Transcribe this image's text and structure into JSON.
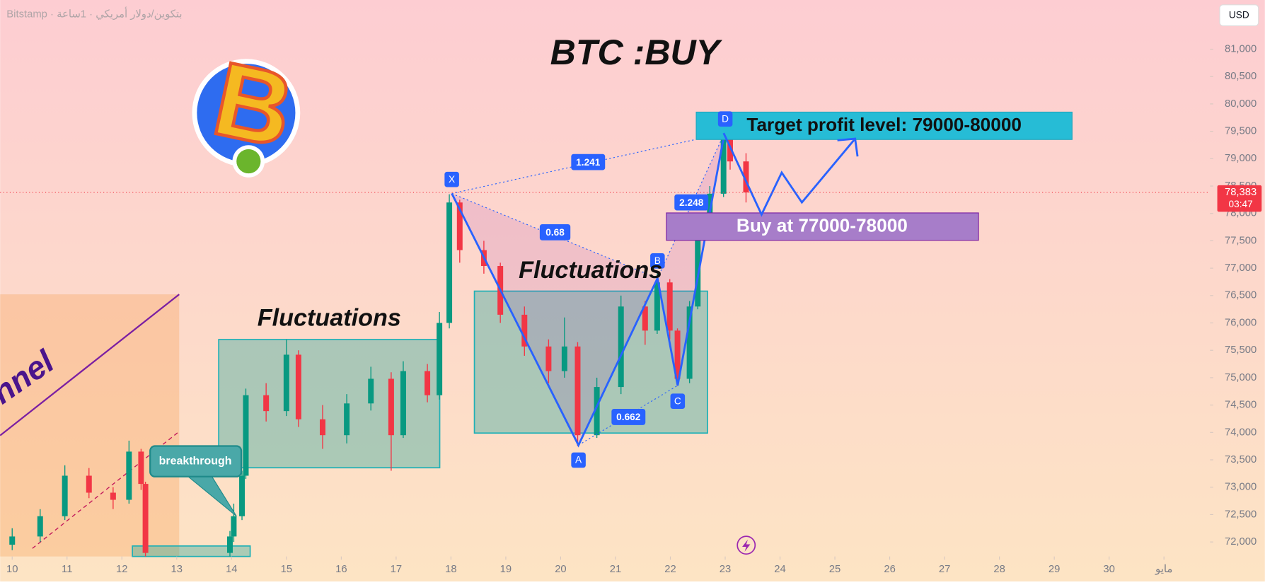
{
  "chart_data": {
    "type": "candlestick",
    "header": "Bitstamp · بتكوين/دولار أمريكي · 1ساعة",
    "currency": "USD",
    "title": "BTC :BUY",
    "target_label": "Target profit level: 79000-80000",
    "buy_label": "Buy at 77000-78000",
    "fluctuations_labels": [
      "Fluctuations",
      "Fluctuations"
    ],
    "breakthrough_label": "breakthrough",
    "channel_label": "nnel",
    "pattern_points": [
      "X",
      "A",
      "B",
      "C",
      "D"
    ],
    "pattern_ratios": [
      "1.241",
      "0.68",
      "2.248",
      "0.662"
    ],
    "up_color": "#089981",
    "down_color": "#f23645",
    "x": [
      10.0,
      10.51,
      10.96,
      11.4,
      11.84,
      12.13,
      12.35,
      12.43,
      13.97,
      14.04,
      14.19,
      14.26,
      14.63,
      15.0,
      15.22,
      15.66,
      16.1,
      16.54,
      16.91,
      17.13,
      17.57,
      17.79,
      17.97,
      18.16,
      18.6,
      18.9,
      19.34,
      19.78,
      20.07,
      20.31,
      20.66,
      21.1,
      21.54,
      21.76,
      21.99,
      22.13,
      22.35,
      22.5,
      22.72,
      22.97,
      23.09,
      23.38
    ],
    "open": [
      71950,
      72100,
      72470,
      73210,
      72900,
      72770,
      73650,
      73060,
      71800,
      72100,
      72470,
      73210,
      74680,
      74390,
      75420,
      74240,
      73950,
      74530,
      74980,
      73950,
      75120,
      74680,
      76000,
      78200,
      77330,
      77040,
      76150,
      75570,
      75120,
      75570,
      73950,
      74830,
      76300,
      75860,
      76740,
      75860,
      74980,
      76300,
      77630,
      78360,
      79390,
      78950
    ],
    "high": [
      72250,
      72600,
      73400,
      73350,
      73000,
      73850,
      73700,
      73100,
      72200,
      72700,
      73300,
      74800,
      74900,
      75700,
      75500,
      74500,
      74700,
      75200,
      75100,
      75300,
      75250,
      76200,
      78350,
      78250,
      77500,
      77100,
      76300,
      75700,
      76100,
      75650,
      75000,
      76500,
      76400,
      76900,
      76800,
      75900,
      76400,
      77800,
      78500,
      79470,
      79400,
      79100
    ],
    "low": [
      71850,
      72000,
      72400,
      72800,
      72600,
      72700,
      72950,
      71700,
      71700,
      72000,
      72400,
      73150,
      74200,
      74300,
      74100,
      73700,
      73800,
      74400,
      73300,
      73900,
      74550,
      74600,
      75900,
      77100,
      76900,
      76000,
      75400,
      74900,
      75000,
      73750,
      73900,
      74700,
      75600,
      75800,
      75700,
      74850,
      74900,
      76250,
      77550,
      78300,
      78800,
      78200
    ],
    "close": [
      72100,
      72470,
      73210,
      72900,
      72770,
      73650,
      73060,
      71800,
      72100,
      72470,
      73210,
      74680,
      74390,
      75420,
      74240,
      73950,
      74530,
      74980,
      73950,
      75120,
      74680,
      76000,
      78200,
      77330,
      77040,
      76150,
      75570,
      75120,
      75570,
      73950,
      74830,
      76300,
      75860,
      76740,
      75860,
      74980,
      76300,
      77630,
      78360,
      79390,
      78950,
      78383
    ],
    "current_price": {
      "value": 78383,
      "label": "78,383"
    },
    "countdown": "03:47",
    "xlim": [
      9.78,
      31.84
    ],
    "xticks": [
      10,
      11,
      12,
      13,
      14,
      15,
      16,
      17,
      18,
      19,
      20,
      21,
      22,
      23,
      24,
      25,
      26,
      27,
      28,
      29,
      30,
      {
        "value": 31,
        "label": "مايو"
      }
    ],
    "ylim": [
      71735,
      81898
    ],
    "yticks": [
      {
        "value": 72000,
        "label": "72,000"
      },
      {
        "value": 72500,
        "label": "72,500"
      },
      {
        "value": 73000,
        "label": "73,000"
      },
      {
        "value": 73500,
        "label": "73,500"
      },
      {
        "value": 74000,
        "label": "74,000"
      },
      {
        "value": 74500,
        "label": "74,500"
      },
      {
        "value": 75000,
        "label": "75,000"
      },
      {
        "value": 75500,
        "label": "75,500"
      },
      {
        "value": 76000,
        "label": "76,000"
      },
      {
        "value": 76500,
        "label": "76,500"
      },
      {
        "value": 77000,
        "label": "77,000"
      },
      {
        "value": 77500,
        "label": "77,500"
      },
      {
        "value": 78000,
        "label": "78,000"
      },
      {
        "value": 78500,
        "label": "78,500"
      },
      {
        "value": 79000,
        "label": "79,000"
      },
      {
        "value": 79500,
        "label": "79,500"
      },
      {
        "value": 80000,
        "label": "80,000"
      },
      {
        "value": 80500,
        "label": "80,500"
      },
      {
        "value": 81000,
        "label": "81,000"
      }
    ]
  }
}
